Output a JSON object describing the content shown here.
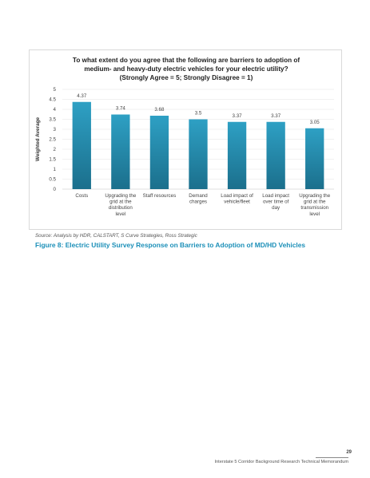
{
  "chart_data": {
    "type": "bar",
    "title_lines": [
      "To what extent do you agree that the following are barriers to adoption of",
      "medium- and heavy-duty electric vehicles for your electric utility?",
      "(Strongly Agree = 5; Strongly Disagree = 1)"
    ],
    "ylabel": "Weighted Average",
    "ylim": [
      0,
      5
    ],
    "yticks": [
      "0",
      "0.5",
      "1",
      "1.5",
      "2",
      "2.5",
      "3",
      "3.5",
      "4",
      "4.5",
      "5"
    ],
    "grid": true,
    "categories": [
      [
        "Costs"
      ],
      [
        "Upgrading the",
        "grid at the",
        "distribution",
        "level"
      ],
      [
        "Staff resources"
      ],
      [
        "Demand",
        "charges"
      ],
      [
        "Load impact of",
        "vehicle/fleet"
      ],
      [
        "Load impact",
        "over time of",
        "day"
      ],
      [
        "Upgrading the",
        "grid at the",
        "transmission",
        "level"
      ]
    ],
    "values": [
      4.37,
      3.74,
      3.68,
      3.5,
      3.37,
      3.37,
      3.05
    ],
    "value_labels": [
      "4.37",
      "3.74",
      "3.68",
      "3.5",
      "3.37",
      "3.37",
      "3.05"
    ],
    "bar_color_top": "#2ea0c4",
    "bar_color_bottom": "#1b6f8c"
  },
  "source_text": "Source: Analysis by HDR, CALSTART, S Curve Strategies, Ross Strategic",
  "caption": "Figure 8: Electric Utility Survey Response on Barriers to Adoption of MD/HD Vehicles",
  "footer": {
    "page_number": "29",
    "document_title": "Interstate 5 Corridor Background Research Technical Memorandum"
  }
}
